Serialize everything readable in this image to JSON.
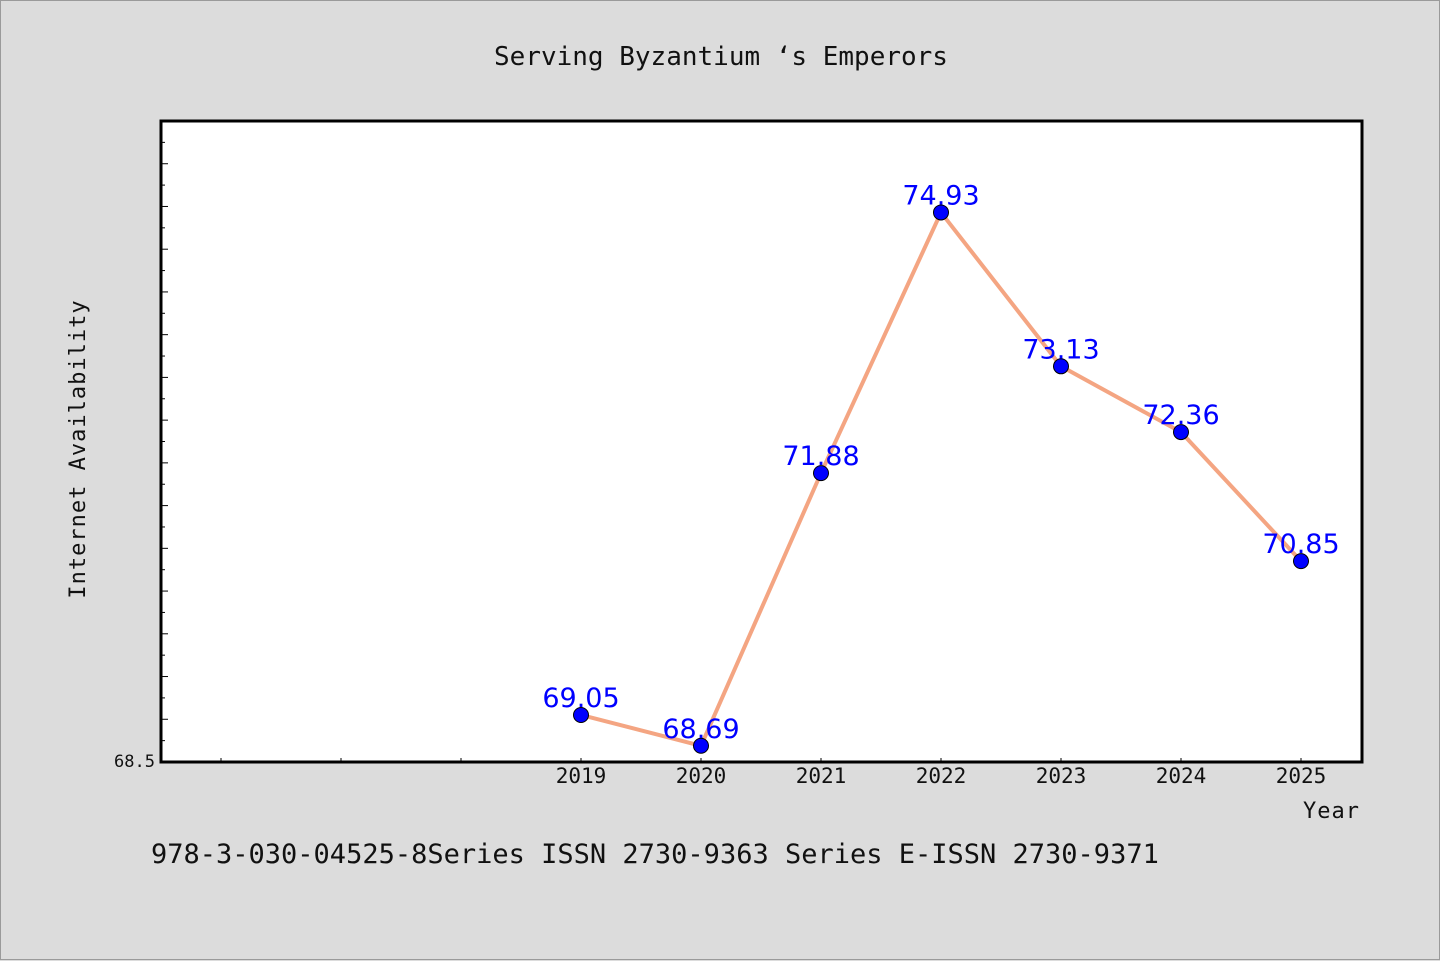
{
  "chart_data": {
    "type": "line",
    "title": "Serving Byzantium ‘s Emperors",
    "xlabel": "Year",
    "ylabel": "Internet Availability",
    "x": [
      "2019",
      "2020",
      "2021",
      "2022",
      "2023",
      "2024",
      "2025"
    ],
    "series": [
      {
        "values": [
          69.05,
          68.69,
          71.88,
          74.93,
          73.13,
          72.36,
          70.85
        ],
        "data_labels": [
          "69.05",
          "68.69",
          "71.88",
          "74.93",
          "73.13",
          "72.36",
          "70.85"
        ]
      }
    ],
    "ylim": [
      68.5,
      76.0
    ],
    "y_tick_label": "68.5",
    "grid": false,
    "line_color": "#f4a582",
    "marker_color": "#0000ff",
    "data_label_color": "#0000ff",
    "background_color": "#dcdcdc",
    "plot_background_color": "#ffffff"
  },
  "footer": {
    "text": "978-3-030-04525-8Series ISSN 2730-9363 Series E-ISSN 2730-9371"
  }
}
